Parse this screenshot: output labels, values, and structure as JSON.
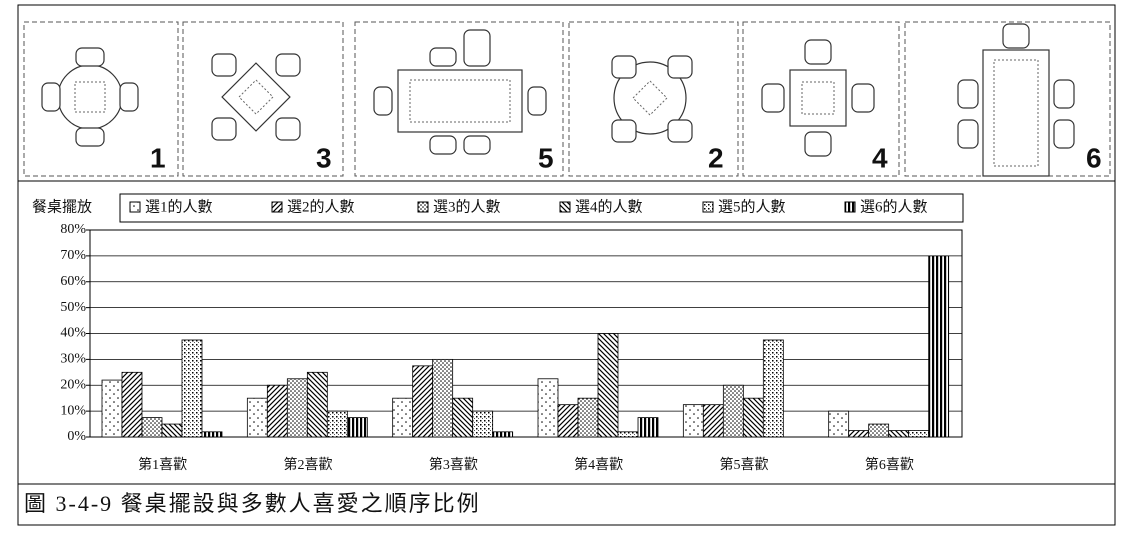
{
  "figure_labels": [
    "1",
    "3",
    "5",
    "2",
    "4",
    "6"
  ],
  "chart_data": {
    "type": "bar",
    "legend_title": "餐桌擺放",
    "caption": "圖 3-4-9 餐桌擺設與多數人喜愛之順序比例",
    "categories": [
      "第1喜歡",
      "第2喜歡",
      "第3喜歡",
      "第4喜歡",
      "第5喜歡",
      "第6喜歡"
    ],
    "series": [
      {
        "name": "選1的人數",
        "color": "#000000",
        "values": [
          22,
          15,
          15,
          22.5,
          12.5,
          10
        ]
      },
      {
        "name": "選2的人數",
        "color": "#000000",
        "values": [
          25,
          20,
          27.5,
          12.5,
          12.5,
          2.5
        ]
      },
      {
        "name": "選3的人數",
        "color": "#000000",
        "values": [
          7.5,
          22.5,
          30,
          15,
          20,
          5
        ]
      },
      {
        "name": "選4的人數",
        "color": "#000000",
        "values": [
          5,
          25,
          15,
          40,
          15,
          2.5
        ]
      },
      {
        "name": "選5的人數",
        "color": "#000000",
        "values": [
          37.5,
          10,
          10,
          2,
          37.5,
          2.5
        ]
      },
      {
        "name": "選6的人數",
        "color": "#000000",
        "values": [
          2,
          7.5,
          2,
          7.5,
          0,
          70
        ]
      }
    ],
    "ylim": [
      0,
      80
    ],
    "yticks": [
      {
        "value": 0,
        "label": "0%"
      },
      {
        "value": 10,
        "label": "10%"
      },
      {
        "value": 20,
        "label": "20%"
      },
      {
        "value": 30,
        "label": "30%"
      },
      {
        "value": 40,
        "label": "40%"
      },
      {
        "value": 50,
        "label": "50%"
      },
      {
        "value": 60,
        "label": "60%"
      },
      {
        "value": 70,
        "label": "70%"
      },
      {
        "value": 80,
        "label": "80%"
      }
    ],
    "grid": true
  }
}
